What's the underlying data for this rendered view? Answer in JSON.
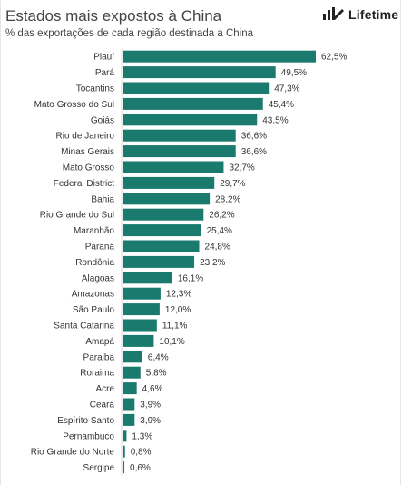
{
  "header": {
    "title": "Estados mais expostos à China",
    "subtitle": "% das exportações de cada região destinada a China"
  },
  "logo": {
    "icon": "lifetime-logo-icon",
    "text": "Lifetime"
  },
  "chart_data": {
    "type": "bar",
    "orientation": "horizontal",
    "title": "Estados mais expostos à China",
    "subtitle": "% das exportações de cada região destinada a China",
    "xlabel": "",
    "ylabel": "",
    "xlim": [
      0,
      65
    ],
    "grid": false,
    "legend": "none",
    "bar_color": "#1a7a6e",
    "categories": [
      "Piauí",
      "Pará",
      "Tocantins",
      "Mato Grosso do Sul",
      "Goiás",
      "Rio de Janeiro",
      "Minas Gerais",
      "Mato Grosso",
      "Federal District",
      "Bahia",
      "Rio Grande do Sul",
      "Maranhão",
      "Paraná",
      "Rondônia",
      "Alagoas",
      "Amazonas",
      "São Paulo",
      "Santa Catarina",
      "Amapá",
      "Paraiba",
      "Roraima",
      "Acre",
      "Ceará",
      "Espírito Santo",
      "Pernambuco",
      "Rio Grande do Norte",
      "Sergipe"
    ],
    "values": [
      62.5,
      49.5,
      47.3,
      45.4,
      43.5,
      36.6,
      36.6,
      32.7,
      29.7,
      28.2,
      26.2,
      25.4,
      24.8,
      23.2,
      16.1,
      12.3,
      12.0,
      11.1,
      10.1,
      6.4,
      5.8,
      4.6,
      3.9,
      3.9,
      1.3,
      0.8,
      0.6
    ],
    "value_labels": [
      "62,5%",
      "49,5%",
      "47,3%",
      "45,4%",
      "43,5%",
      "36,6%",
      "36,6%",
      "32,7%",
      "29,7%",
      "28,2%",
      "26,2%",
      "25,4%",
      "24,8%",
      "23,2%",
      "16,1%",
      "12,3%",
      "12,0%",
      "11,1%",
      "10,1%",
      "6,4%",
      "5,8%",
      "4,6%",
      "3,9%",
      "3,9%",
      "1,3%",
      "0,8%",
      "0,6%"
    ]
  }
}
